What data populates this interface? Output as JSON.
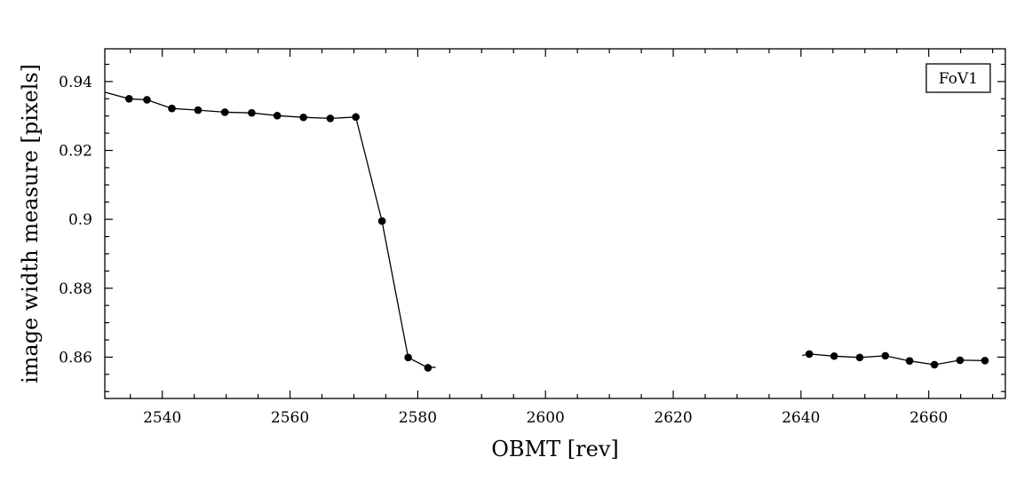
{
  "chart_data": {
    "type": "line",
    "title": "",
    "xlabel": "OBMT [rev]",
    "ylabel": "image width measure [pixels]",
    "xlim": [
      2531,
      2672
    ],
    "ylim": [
      0.848,
      0.9495
    ],
    "x_ticks": [
      2540,
      2560,
      2580,
      2600,
      2620,
      2640,
      2660
    ],
    "x_tick_labels": [
      "2540",
      "2560",
      "2580",
      "2600",
      "2620",
      "2640",
      "2660"
    ],
    "y_ticks": [
      0.86,
      0.88,
      0.9,
      0.92,
      0.94
    ],
    "y_tick_labels": [
      "0.86",
      "0.88",
      "0.9",
      "0.92",
      "0.94"
    ],
    "grid": false,
    "legend_position": "top-right",
    "legend_label": "FoV1",
    "series": [
      {
        "segments": [
          {
            "line": [
              [
                2531,
                0.9369
              ],
              [
                2534.8,
                0.935
              ],
              [
                2537.6,
                0.9347
              ],
              [
                2541.5,
                0.9322
              ],
              [
                2545.6,
                0.9317
              ],
              [
                2549.8,
                0.9311
              ],
              [
                2554,
                0.9309
              ],
              [
                2558,
                0.9301
              ],
              [
                2562.1,
                0.9296
              ],
              [
                2566.3,
                0.9293
              ],
              [
                2570.3,
                0.9297
              ],
              [
                2574.4,
                0.8995
              ],
              [
                2578.5,
                0.8599
              ],
              [
                2581.6,
                0.8569
              ],
              [
                2582.8,
                0.8571
              ]
            ],
            "points": [
              [
                2534.8,
                0.935
              ],
              [
                2537.6,
                0.9347
              ],
              [
                2541.5,
                0.9322
              ],
              [
                2545.6,
                0.9317
              ],
              [
                2549.8,
                0.9311
              ],
              [
                2554,
                0.9309
              ],
              [
                2558,
                0.9301
              ],
              [
                2562.1,
                0.9296
              ],
              [
                2566.3,
                0.9293
              ],
              [
                2570.3,
                0.9297
              ],
              [
                2574.4,
                0.8995
              ],
              [
                2578.5,
                0.8599
              ],
              [
                2581.6,
                0.8569
              ]
            ]
          },
          {
            "line": [
              [
                2640.2,
                0.8605
              ],
              [
                2641.3,
                0.8609
              ],
              [
                2645.2,
                0.8603
              ],
              [
                2649.2,
                0.8599
              ],
              [
                2653.2,
                0.8604
              ],
              [
                2657,
                0.8589
              ],
              [
                2660.9,
                0.8578
              ],
              [
                2664.9,
                0.8591
              ],
              [
                2668.8,
                0.859
              ]
            ],
            "points": [
              [
                2641.3,
                0.8609
              ],
              [
                2645.2,
                0.8603
              ],
              [
                2649.2,
                0.8599
              ],
              [
                2653.2,
                0.8604
              ],
              [
                2657,
                0.8589
              ],
              [
                2660.9,
                0.8578
              ],
              [
                2664.9,
                0.8591
              ],
              [
                2668.8,
                0.859
              ]
            ]
          }
        ]
      }
    ]
  }
}
